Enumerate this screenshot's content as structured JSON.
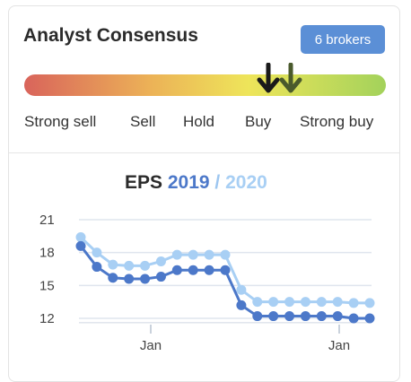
{
  "header": {
    "title": "Analyst Consensus",
    "brokers_badge": "6 brokers"
  },
  "gauge": {
    "labels": [
      "Strong sell",
      "Sell",
      "Hold",
      "Buy",
      "Strong buy"
    ],
    "markers": [
      {
        "name": "current",
        "color": "#1a1a1a"
      },
      {
        "name": "previous",
        "color": "#4a5a2c"
      }
    ]
  },
  "eps": {
    "title": "EPS",
    "year1": "2019",
    "separator": " /",
    "year2": "2020"
  },
  "chart_data": {
    "type": "line",
    "x_ticks": [
      "Jan",
      "Jan"
    ],
    "y_ticks": [
      21,
      18,
      15,
      12
    ],
    "ylim": [
      11.5,
      21.5
    ],
    "series": [
      {
        "name": "2019",
        "color": "#4c78c9",
        "values": [
          18.6,
          16.7,
          15.7,
          15.6,
          15.6,
          15.8,
          16.4,
          16.4,
          16.4,
          16.4,
          13.2,
          12.2,
          12.2,
          12.2,
          12.2,
          12.2,
          12.2,
          12.0,
          12.0
        ]
      },
      {
        "name": "2020",
        "color": "#a8cff4",
        "values": [
          19.4,
          18.0,
          16.9,
          16.8,
          16.8,
          17.2,
          17.8,
          17.8,
          17.8,
          17.8,
          14.6,
          13.5,
          13.5,
          13.5,
          13.5,
          13.5,
          13.5,
          13.4,
          13.4
        ]
      }
    ]
  }
}
